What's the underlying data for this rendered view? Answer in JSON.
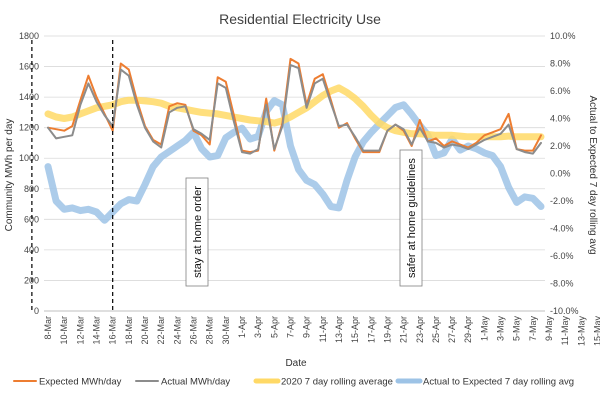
{
  "chart_data": {
    "type": "line",
    "title": "Residential Electricity Use",
    "xlabel": "Date",
    "ylabel": "Community MWh per day",
    "y2label": "Actual to Expected 7 day rolling avg",
    "ylim": [
      0,
      1800
    ],
    "y_ticks": [
      "0",
      "200",
      "400",
      "600",
      "800",
      "1000",
      "1200",
      "1400",
      "1600",
      "1800"
    ],
    "y2lim": [
      -10,
      10
    ],
    "y2_ticks": [
      "-10.0%",
      "-8.0%",
      "-6.0%",
      "-4.0%",
      "-2.0%",
      "0.0%",
      "2.0%",
      "4.0%",
      "6.0%",
      "8.0%",
      "10.0%"
    ],
    "grid": true,
    "legend_position": "bottom",
    "x_labels": [
      "8-Mar",
      "10-Mar",
      "12-Mar",
      "14-Mar",
      "16-Mar",
      "18-Mar",
      "20-Mar",
      "22-Mar",
      "24-Mar",
      "26-Mar",
      "28-Mar",
      "30-Mar",
      "1-Apr",
      "3-Apr",
      "5-Apr",
      "7-Apr",
      "9-Apr",
      "11-Apr",
      "13-Apr",
      "15-Apr",
      "17-Apr",
      "19-Apr",
      "21-Apr",
      "23-Apr",
      "25-Apr",
      "27-Apr",
      "29-Apr",
      "1-May",
      "3-May",
      "5-May",
      "7-May",
      "9-May",
      "11-May",
      "13-May",
      "15-May"
    ],
    "series": [
      {
        "name": "Expected MWh/day",
        "color": "#ED7D31",
        "axis": "left",
        "values": [
          1200,
          1190,
          1180,
          1210,
          1380,
          1540,
          1400,
          1290,
          1180,
          1620,
          1580,
          1380,
          1210,
          1120,
          1090,
          1340,
          1360,
          1350,
          1180,
          1150,
          1090,
          1530,
          1500,
          1280,
          1050,
          1040,
          1050,
          1390,
          1050,
          1230,
          1650,
          1620,
          1350,
          1520,
          1550,
          1380,
          1200,
          1230,
          1130,
          1040,
          1040,
          1040,
          1180,
          1220,
          1180,
          1080,
          1250,
          1110,
          1130,
          1080,
          1110,
          1090,
          1070,
          1100,
          1150,
          1170,
          1190,
          1290,
          1060,
          1050,
          1050,
          1150
        ]
      },
      {
        "name": "Actual MWh/day",
        "color": "#8C8C8C",
        "axis": "left",
        "values": [
          1200,
          1130,
          1140,
          1150,
          1350,
          1490,
          1370,
          1280,
          1210,
          1580,
          1540,
          1350,
          1200,
          1110,
          1070,
          1300,
          1330,
          1340,
          1190,
          1160,
          1120,
          1490,
          1460,
          1240,
          1040,
          1030,
          1060,
          1350,
          1060,
          1210,
          1610,
          1590,
          1330,
          1490,
          1520,
          1360,
          1210,
          1220,
          1140,
          1050,
          1050,
          1050,
          1180,
          1220,
          1190,
          1090,
          1200,
          1110,
          1100,
          1070,
          1090,
          1080,
          1060,
          1090,
          1120,
          1140,
          1160,
          1220,
          1060,
          1040,
          1030,
          1100
        ]
      },
      {
        "name": "2020 7 day rolling average",
        "color": "#FFD966",
        "axis": "left",
        "values": [
          1290,
          1270,
          1260,
          1270,
          1290,
          1310,
          1330,
          1340,
          1350,
          1370,
          1380,
          1380,
          1375,
          1370,
          1360,
          1340,
          1330,
          1320,
          1310,
          1300,
          1295,
          1290,
          1280,
          1270,
          1260,
          1250,
          1245,
          1240,
          1230,
          1245,
          1270,
          1300,
          1330,
          1370,
          1410,
          1440,
          1460,
          1430,
          1390,
          1340,
          1280,
          1230,
          1200,
          1180,
          1170,
          1160,
          1160,
          1155,
          1150,
          1150,
          1150,
          1145,
          1140,
          1140,
          1140,
          1140,
          1140,
          1145,
          1140,
          1140,
          1140,
          1140
        ]
      },
      {
        "name": "Actual to Expected 7 day rolling avg",
        "color": "#9DC3E6",
        "axis": "right",
        "values": [
          0.5,
          -2.0,
          -2.6,
          -2.5,
          -2.7,
          -2.6,
          -2.8,
          -3.4,
          -2.8,
          -2.2,
          -1.9,
          -2.0,
          -0.8,
          0.5,
          1.2,
          1.6,
          2.0,
          2.4,
          3.0,
          1.8,
          1.2,
          1.3,
          2.6,
          3.0,
          3.3,
          2.5,
          2.7,
          4.5,
          5.3,
          5.0,
          2.0,
          0.3,
          -0.5,
          -0.8,
          -1.5,
          -2.4,
          -2.5,
          -0.5,
          1.2,
          2.3,
          3.0,
          3.6,
          4.2,
          4.8,
          5.0,
          4.3,
          3.5,
          2.8,
          1.3,
          1.5,
          2.5,
          1.7,
          2.0,
          1.8,
          1.5,
          1.3,
          0.5,
          -1.0,
          -2.1,
          -1.7,
          -1.8,
          -2.4
        ]
      }
    ],
    "annotations": [
      {
        "label": "stay at home order",
        "x_label": "16-Mar"
      },
      {
        "label": "safer at home guidelines",
        "x_label": "26-Apr"
      }
    ]
  }
}
